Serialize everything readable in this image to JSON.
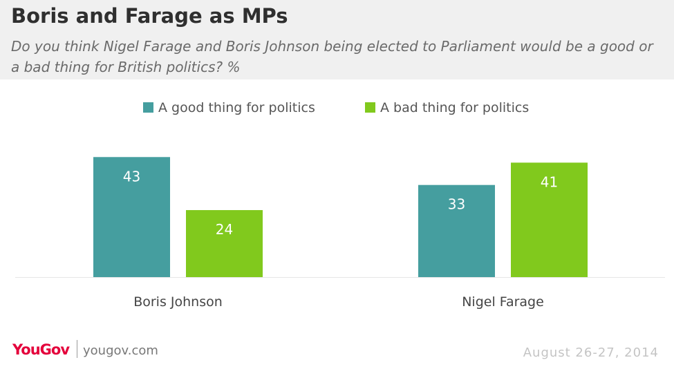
{
  "header": {
    "title": "Boris and Farage as MPs",
    "subtitle": "Do you think Nigel Farage and Boris Johnson being elected to Parliament would be a good or a bad thing for British politics? %"
  },
  "chart_data": {
    "type": "bar",
    "categories": [
      "Boris Johnson",
      "Nigel Farage"
    ],
    "series": [
      {
        "name": "A good thing for politics",
        "values": [
          43,
          33
        ],
        "color": "#459e9f"
      },
      {
        "name": "A bad thing for politics",
        "values": [
          24,
          41
        ],
        "color": "#81c91d"
      }
    ],
    "title": "Boris and Farage as MPs",
    "xlabel": "",
    "ylabel": "",
    "ylim": [
      0,
      50
    ],
    "grid": false,
    "legend": "top-center"
  },
  "footer": {
    "brand": "YouGov",
    "url": "yougov.com",
    "date": "August 26-27, 2014"
  }
}
